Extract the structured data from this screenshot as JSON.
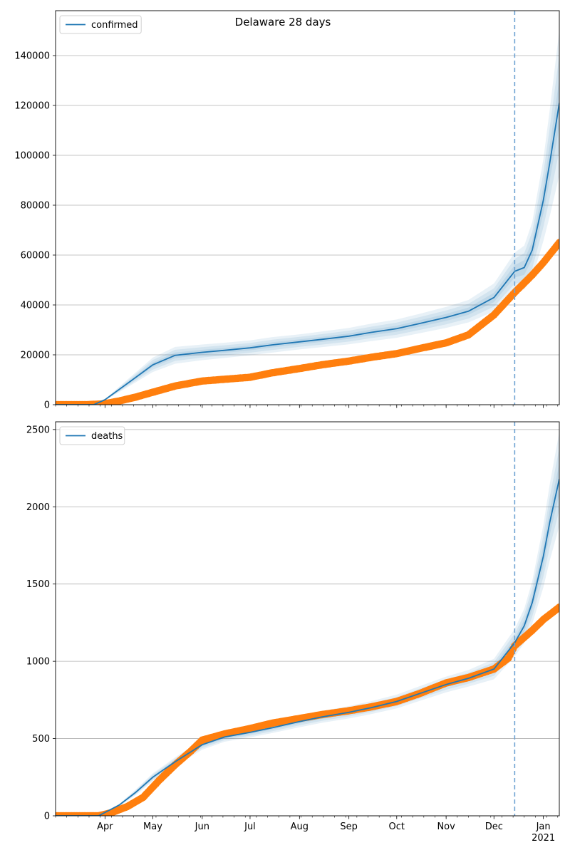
{
  "figure_title": "Delaware 28 days",
  "x_axis": {
    "month_labels": [
      "Apr",
      "May",
      "Jun",
      "Jul",
      "Aug",
      "Sep",
      "Oct",
      "Nov",
      "Dec",
      "Jan"
    ],
    "month_dates": [
      "2020-04-01",
      "2020-05-01",
      "2020-06-01",
      "2020-07-01",
      "2020-08-01",
      "2020-09-01",
      "2020-10-01",
      "2020-11-01",
      "2020-12-01",
      "2021-01-01"
    ],
    "year_label": "2021",
    "start": "2020-03-01",
    "end": "2021-01-11",
    "forecast_start": "2020-12-14"
  },
  "colors": {
    "model": "#1f77b4",
    "observed": "#ff7f0e",
    "grid": "#b0b0b0",
    "forecast_line": "#6fa3d3"
  },
  "chart_data": [
    {
      "type": "line",
      "title": "Delaware 28 days",
      "legend": {
        "label": "confirmed",
        "position": "top-left"
      },
      "grid": true,
      "ylim": [
        0,
        158000
      ],
      "yticks": [
        0,
        20000,
        40000,
        60000,
        80000,
        100000,
        120000,
        140000
      ],
      "observed": {
        "x": [
          "2020-03-01",
          "2020-03-20",
          "2020-03-31",
          "2020-04-10",
          "2020-04-20",
          "2020-05-01",
          "2020-05-15",
          "2020-06-01",
          "2020-06-15",
          "2020-07-01",
          "2020-07-15",
          "2020-08-01",
          "2020-08-15",
          "2020-09-01",
          "2020-09-15",
          "2020-10-01",
          "2020-10-15",
          "2020-11-01",
          "2020-11-15",
          "2020-12-01",
          "2020-12-14",
          "2020-12-25",
          "2021-01-01",
          "2021-01-11"
        ],
        "y": [
          0,
          0,
          300,
          1500,
          3000,
          5000,
          7500,
          9500,
          10200,
          11000,
          12800,
          14500,
          16000,
          17500,
          19000,
          20500,
          22500,
          24800,
          28000,
          36000,
          45000,
          52000,
          57000,
          65000
        ]
      },
      "model": {
        "x": [
          "2020-03-01",
          "2020-03-25",
          "2020-04-01",
          "2020-04-15",
          "2020-05-01",
          "2020-05-15",
          "2020-06-01",
          "2020-06-15",
          "2020-07-01",
          "2020-07-15",
          "2020-08-01",
          "2020-08-15",
          "2020-09-01",
          "2020-09-15",
          "2020-10-01",
          "2020-10-15",
          "2020-11-01",
          "2020-11-15",
          "2020-12-01",
          "2020-12-14",
          "2020-12-20",
          "2020-12-25",
          "2021-01-01",
          "2021-01-05",
          "2021-01-11"
        ],
        "y": [
          0,
          0,
          2000,
          8500,
          16000,
          19800,
          21000,
          21800,
          22800,
          24000,
          25200,
          26200,
          27500,
          29000,
          30500,
          32500,
          35000,
          37500,
          43000,
          53500,
          55000,
          62000,
          82000,
          97000,
          121000
        ],
        "band_spread": [
          0,
          0,
          0.15,
          0.18,
          0.18,
          0.17,
          0.15,
          0.14,
          0.13,
          0.13,
          0.12,
          0.12,
          0.12,
          0.12,
          0.12,
          0.12,
          0.12,
          0.12,
          0.13,
          0.14,
          0.16,
          0.18,
          0.2,
          0.22,
          0.24
        ]
      }
    },
    {
      "type": "line",
      "title": "",
      "legend": {
        "label": "deaths",
        "position": "top-left"
      },
      "grid": true,
      "ylim": [
        0,
        2550
      ],
      "yticks": [
        0,
        500,
        1000,
        1500,
        2000,
        2500
      ],
      "observed": {
        "x": [
          "2020-03-01",
          "2020-03-28",
          "2020-04-05",
          "2020-04-15",
          "2020-04-25",
          "2020-05-05",
          "2020-05-15",
          "2020-05-25",
          "2020-06-01",
          "2020-06-15",
          "2020-07-01",
          "2020-07-15",
          "2020-08-01",
          "2020-08-15",
          "2020-09-01",
          "2020-09-15",
          "2020-10-01",
          "2020-10-15",
          "2020-11-01",
          "2020-11-15",
          "2020-12-01",
          "2020-12-10",
          "2020-12-14",
          "2020-12-25",
          "2021-01-01",
          "2021-01-11"
        ],
        "y": [
          0,
          0,
          20,
          60,
          120,
          230,
          330,
          420,
          490,
          530,
          565,
          600,
          630,
          655,
          680,
          705,
          740,
          790,
          860,
          895,
          950,
          1020,
          1100,
          1200,
          1270,
          1350
        ]
      },
      "model": {
        "x": [
          "2020-03-01",
          "2020-03-28",
          "2020-04-10",
          "2020-04-20",
          "2020-05-01",
          "2020-05-15",
          "2020-06-01",
          "2020-06-15",
          "2020-07-01",
          "2020-07-15",
          "2020-08-01",
          "2020-08-15",
          "2020-09-01",
          "2020-09-15",
          "2020-10-01",
          "2020-10-15",
          "2020-11-01",
          "2020-11-15",
          "2020-12-01",
          "2020-12-14",
          "2020-12-20",
          "2020-12-25",
          "2021-01-01",
          "2021-01-05",
          "2021-01-11"
        ],
        "y": [
          0,
          0,
          70,
          150,
          250,
          350,
          460,
          510,
          540,
          570,
          610,
          640,
          670,
          700,
          740,
          790,
          850,
          890,
          950,
          1120,
          1230,
          1380,
          1680,
          1900,
          2180
        ],
        "band_spread": [
          0,
          0,
          0.12,
          0.12,
          0.1,
          0.08,
          0.07,
          0.06,
          0.06,
          0.06,
          0.06,
          0.06,
          0.06,
          0.06,
          0.06,
          0.06,
          0.06,
          0.06,
          0.07,
          0.08,
          0.09,
          0.1,
          0.12,
          0.13,
          0.14
        ]
      }
    }
  ]
}
